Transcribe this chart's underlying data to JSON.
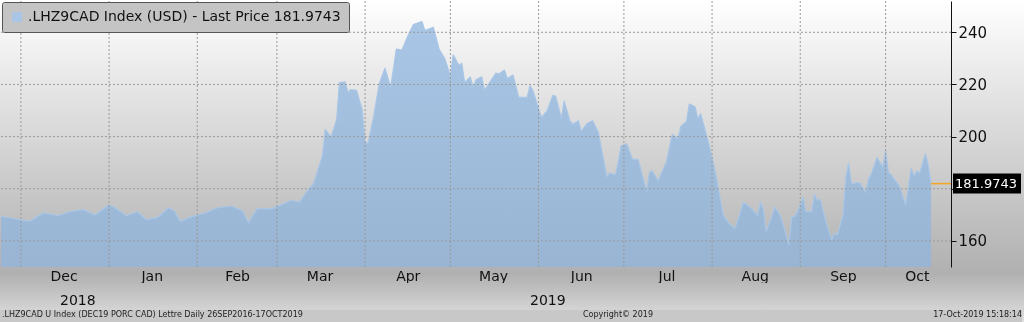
{
  "chart_data": {
    "type": "area",
    "x": [
      "2018-11-24",
      "2018-11-28",
      "2018-12-04",
      "2018-12-09",
      "2018-12-14",
      "2018-12-18",
      "2018-12-23",
      "2018-12-27",
      "2019-01-01",
      "2019-01-03",
      "2019-01-07",
      "2019-01-11",
      "2019-01-14",
      "2019-01-18",
      "2019-01-22",
      "2019-01-24",
      "2019-01-26",
      "2019-01-30",
      "2019-02-04",
      "2019-02-08",
      "2019-02-13",
      "2019-02-17",
      "2019-02-19",
      "2019-02-22",
      "2019-02-27",
      "2019-03-03",
      "2019-03-06",
      "2019-03-09",
      "2019-03-11",
      "2019-03-14",
      "2019-03-17",
      "2019-03-18",
      "2019-03-20",
      "2019-03-22",
      "2019-03-23",
      "2019-03-25",
      "2019-03-26",
      "2019-03-27",
      "2019-03-29",
      "2019-03-31",
      "2019-04-01",
      "2019-04-02",
      "2019-04-04",
      "2019-04-06",
      "2019-04-08",
      "2019-04-10",
      "2019-04-12",
      "2019-04-14",
      "2019-04-16",
      "2019-04-18",
      "2019-04-21",
      "2019-04-22",
      "2019-04-25",
      "2019-04-27",
      "2019-04-29",
      "2019-05-01",
      "2019-05-02",
      "2019-05-04",
      "2019-05-05",
      "2019-05-06",
      "2019-05-08",
      "2019-05-09",
      "2019-05-10",
      "2019-05-12",
      "2019-05-13",
      "2019-05-17",
      "2019-05-18",
      "2019-05-20",
      "2019-05-21",
      "2019-05-23",
      "2019-05-25",
      "2019-05-28",
      "2019-05-29",
      "2019-05-30",
      "2019-06-02",
      "2019-06-04",
      "2019-06-06",
      "2019-06-07",
      "2019-06-09",
      "2019-06-10",
      "2019-06-12",
      "2019-06-13",
      "2019-06-15",
      "2019-06-16",
      "2019-06-18",
      "2019-06-20",
      "2019-06-22",
      "2019-06-25",
      "2019-06-26",
      "2019-06-28",
      "2019-06-29",
      "2019-06-30",
      "2019-07-02",
      "2019-07-04",
      "2019-07-06",
      "2019-07-09",
      "2019-07-10",
      "2019-07-11",
      "2019-07-13",
      "2019-07-16",
      "2019-07-18",
      "2019-07-20",
      "2019-07-21",
      "2019-07-23",
      "2019-07-24",
      "2019-07-26",
      "2019-07-27",
      "2019-07-28",
      "2019-07-31",
      "2019-08-02",
      "2019-08-05",
      "2019-08-07",
      "2019-08-09",
      "2019-08-11",
      "2019-08-12",
      "2019-08-15",
      "2019-08-17",
      "2019-08-18",
      "2019-08-19",
      "2019-08-20",
      "2019-08-22",
      "2019-08-23",
      "2019-08-25",
      "2019-08-26",
      "2019-08-28",
      "2019-08-29",
      "2019-08-30",
      "2019-08-31",
      "2019-09-02",
      "2019-09-03",
      "2019-09-05",
      "2019-09-06",
      "2019-09-07",
      "2019-09-08",
      "2019-09-10",
      "2019-09-12",
      "2019-09-13",
      "2019-09-14",
      "2019-09-16",
      "2019-09-17",
      "2019-09-18",
      "2019-09-19",
      "2019-09-21",
      "2019-09-22",
      "2019-09-24",
      "2019-09-25",
      "2019-09-26",
      "2019-09-28",
      "2019-09-30",
      "2019-10-01",
      "2019-10-02",
      "2019-10-03",
      "2019-10-06",
      "2019-10-08",
      "2019-10-09",
      "2019-10-10",
      "2019-10-11",
      "2019-10-12",
      "2019-10-13",
      "2019-10-15",
      "2019-10-16",
      "2019-10-17"
    ],
    "series": [
      {
        "name": ".LHZ9CAD Index (USD) - Last Price 181.9743",
        "color": "#a9c6e6",
        "values": [
          169.4,
          168.7,
          167.5,
          170.8,
          169.7,
          171.2,
          172,
          170,
          173.8,
          172.8,
          169.7,
          171.2,
          168.2,
          169,
          172.7,
          171.5,
          167.5,
          169.3,
          170.8,
          172.7,
          173.4,
          171.5,
          167,
          172.3,
          172.3,
          174.1,
          175.6,
          174.9,
          178.2,
          182.3,
          192.7,
          202.8,
          199.8,
          206.5,
          220.7,
          221,
          216.9,
          218,
          217.7,
          210.2,
          198,
          197.2,
          207.6,
          220.3,
          226.2,
          218.8,
          233.6,
          233.2,
          238.5,
          243,
          244.1,
          240.7,
          241.9,
          233.6,
          229.9,
          223.3,
          231.4,
          227.3,
          228.1,
          220.7,
          222.9,
          218.8,
          221.8,
          222.9,
          217.7,
          224.4,
          224,
          225.5,
          222.2,
          223.6,
          215.1,
          215.1,
          219.5,
          217.7,
          207.3,
          209.9,
          215.8,
          215.5,
          206.9,
          213.6,
          206.1,
          204.7,
          206.1,
          202,
          205,
          206.1,
          201.7,
          184.6,
          186,
          185.3,
          190.2,
          196.5,
          197.2,
          191.3,
          191.3,
          179,
          186.4,
          186.8,
          183.1,
          190.5,
          200.9,
          199.1,
          203.9,
          205.8,
          212.5,
          211.4,
          206.9,
          208.8,
          196.5,
          187.2,
          169.7,
          166.7,
          164.8,
          171.2,
          174.9,
          172.3,
          169.7,
          174.9,
          172.3,
          163.7,
          169.3,
          173,
          169.7,
          166.3,
          158.5,
          169.3,
          169.3,
          171.2,
          176.7,
          171.2,
          171.2,
          177.9,
          175.6,
          176,
          167.5,
          160.4,
          163,
          162.3,
          169.7,
          184.2,
          189.8,
          182,
          182.3,
          182.3,
          178.6,
          183.8,
          185.7,
          192,
          188.3,
          194.6,
          186.4,
          185.3,
          180.8,
          173.8,
          180.4,
          187.9,
          184.9,
          186.8,
          186,
          193.5,
          189.1,
          181.9743
        ]
      }
    ],
    "xlim": [
      "2018-11-24",
      "2019-10-24"
    ],
    "xticks": [
      {
        "value": "2018-12-01",
        "label": null
      },
      {
        "value": "2018-12-16",
        "label": "Dec"
      },
      {
        "value": "2019-01-01",
        "label": null
      },
      {
        "value": "2019-01-16",
        "label": "Jan"
      },
      {
        "value": "2019-02-01",
        "label": null
      },
      {
        "value": "2019-02-15",
        "label": "Feb"
      },
      {
        "value": "2019-03-01",
        "label": null
      },
      {
        "value": "2019-03-16",
        "label": "Mar"
      },
      {
        "value": "2019-04-01",
        "label": null
      },
      {
        "value": "2019-04-16",
        "label": "Apr"
      },
      {
        "value": "2019-05-01",
        "label": null
      },
      {
        "value": "2019-05-16",
        "label": "May"
      },
      {
        "value": "2019-06-01",
        "label": null
      },
      {
        "value": "2019-06-16",
        "label": "Jun"
      },
      {
        "value": "2019-07-01",
        "label": null
      },
      {
        "value": "2019-07-16",
        "label": "Jul"
      },
      {
        "value": "2019-08-01",
        "label": null
      },
      {
        "value": "2019-08-16",
        "label": "Aug"
      },
      {
        "value": "2019-09-01",
        "label": null
      },
      {
        "value": "2019-09-16",
        "label": "Sep"
      },
      {
        "value": "2019-10-01",
        "label": null
      },
      {
        "value": "2019-10-12",
        "label": "Oct"
      }
    ],
    "ylim": [
      150,
      252
    ],
    "yticks": [
      160,
      {
        "value": 180,
        "label": null
      },
      200,
      220,
      240
    ],
    "grid": true,
    "legend": "top left",
    "ref_lines": [
      {
        "axis": "y",
        "value": 181.9743,
        "label": "181.9743",
        "color": "#f5a623"
      }
    ],
    "annotations": [
      "2018",
      "2019",
      ".LHZ9CAD U Index (DEC19 PORC CAD) Lettre  Daily 26SEP2016-17OCT2019",
      "Copyright© 2019",
      "17-Oct-2019 15:18:14"
    ]
  }
}
